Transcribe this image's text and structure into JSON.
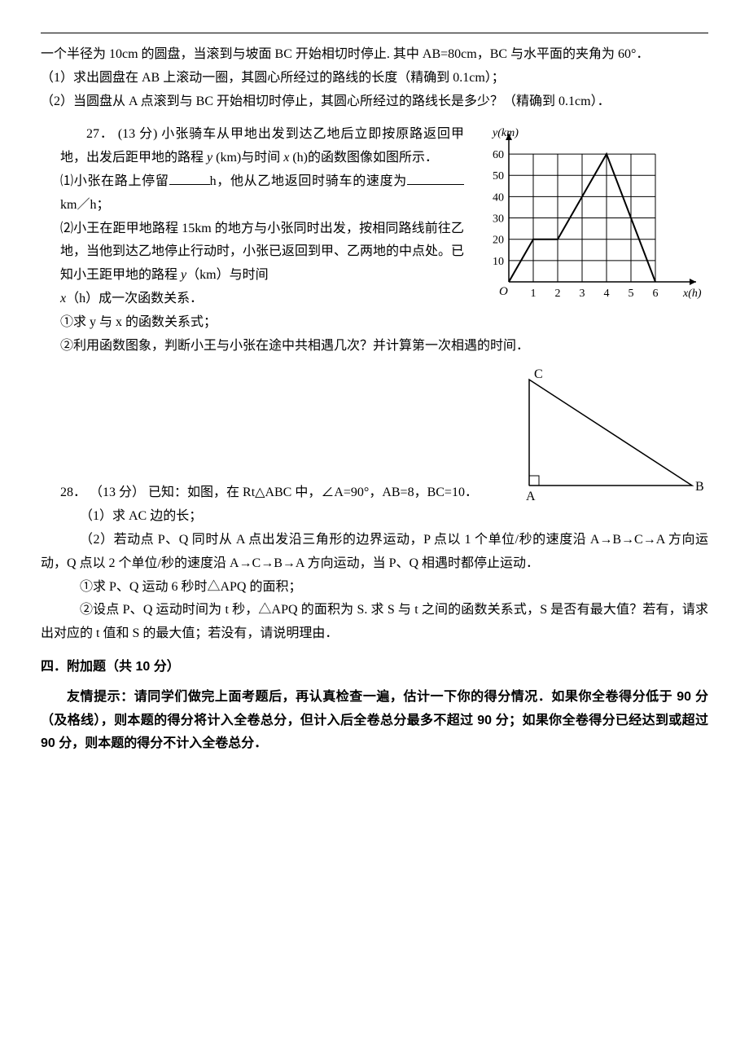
{
  "p26": {
    "line1": "一个半径为 10cm 的圆盘，当滚到与坡面 BC 开始相切时停止. 其中 AB=80cm，BC 与水平面的夹角为 60°．",
    "sub1": "（1）求出圆盘在 AB 上滚动一圈，其圆心所经过的路线的长度（精确到 0.1cm）；",
    "sub2": "（2）当圆盘从 A 点滚到与 BC 开始相切时停止，其圆心所经过的路线长是多少？（精确到 0.1cm）．"
  },
  "p27": {
    "num": "27．",
    "points": "(13 分)",
    "intro": " 小张骑车从甲地出发到达乙地后立即按原路返回甲地，出发后距甲地的路程 ",
    "intro2": " (km)与时间 ",
    "intro3": " (h)的函数图像如图所示．",
    "sub1a": "⑴小张在路上停留",
    "sub1b": "h，他从乙地返回时骑车的速度为",
    "sub1c": "km／h；",
    "sub2": "⑵小王在距甲地路程 15km 的地方与小张同时出发，按相同路线前往乙地，当他到达乙地停止行动时，小张已返回到甲、乙两地的中点处。已知小王距甲地的路程 ",
    "sub2b": "（km）与时间",
    "sub2c": "（h）成一次函数关系．",
    "q1": "①求 y 与 x 的函数关系式；",
    "q2": "②利用函数图象，判断小王与小张在途中共相遇几次？并计算第一次相遇的时间．"
  },
  "chart27": {
    "ylabel": "y(km)",
    "xlabel": "x(h)",
    "ymax": 60,
    "yticks": [
      10,
      20,
      30,
      40,
      50,
      60
    ],
    "xticks": [
      1,
      2,
      3,
      4,
      5,
      6
    ],
    "bg": "#ffffff",
    "axis_color": "#000000",
    "line_color": "#000000",
    "points": [
      [
        0,
        0
      ],
      [
        1,
        20
      ],
      [
        2,
        20
      ],
      [
        4,
        60
      ],
      [
        6,
        0
      ]
    ]
  },
  "p28": {
    "num": "28．",
    "points": "（13 分）",
    "intro": "已知：如图，在 Rt△ABC 中，∠A=90°，AB=8，BC=10．",
    "sub1": "（1）求 AC 边的长；",
    "sub2": "（2）若动点 P、Q 同时从 A 点出发沿三角形的边界运动，P 点以 1 个单位/秒的速度沿 A→B→C→A 方向运动，Q 点以 2 个单位/秒的速度沿 A→C→B→A 方向运动，当 P、Q 相遇时都停止运动．",
    "q1": "①求 P、Q 运动 6 秒时△APQ 的面积；",
    "q2": "②设点 P、Q 运动时间为 t 秒，△APQ 的面积为 S. 求 S 与 t 之间的函数关系式，S 是否有最大值？若有，请求出对应的 t 值和 S 的最大值；若没有，请说明理由．"
  },
  "triangle28": {
    "A": "A",
    "B": "B",
    "C": "C",
    "color": "#000000"
  },
  "section4": {
    "title": "四．附加题（共 10 分）",
    "hint": "友情提示：请同学们做完上面考题后，再认真检查一遍，估计一下你的得分情况．如果你全卷得分低于 90 分（及格线），则本题的得分将计入全卷总分，但计入后全卷总分最多不超过 90 分；如果你全卷得分已经达到或超过 90 分，则本题的得分不计入全卷总分．"
  }
}
